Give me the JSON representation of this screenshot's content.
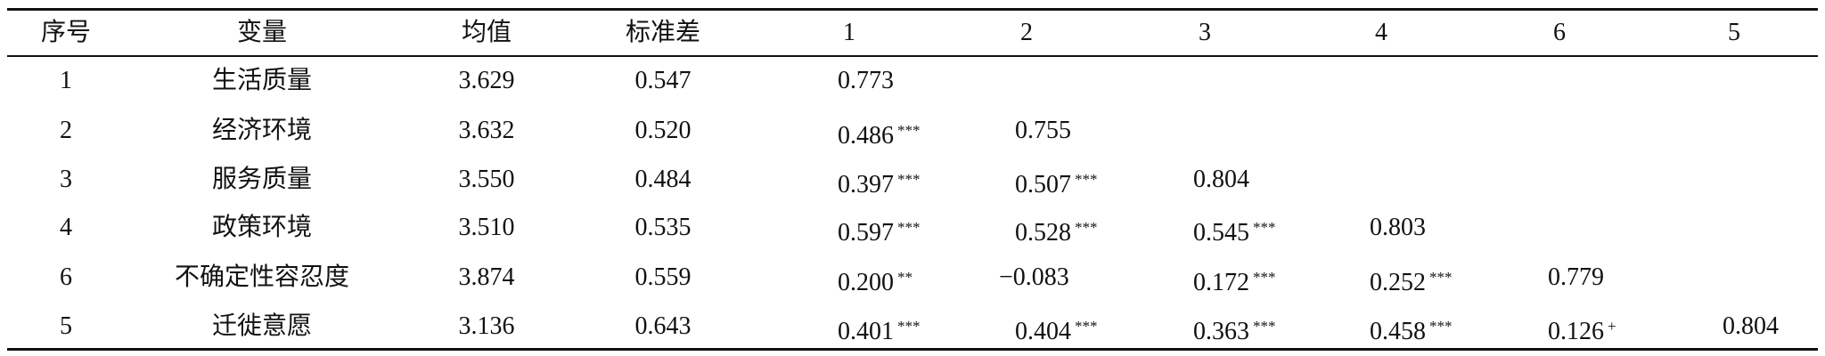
{
  "table": {
    "header": [
      "序号",
      "变量",
      "均值",
      "标准差",
      "1",
      "2",
      "3",
      "4",
      "6",
      "5"
    ],
    "rows": [
      [
        "1",
        "生活质量",
        "3.629",
        "0.547",
        {
          "text": "0.773"
        }
      ],
      [
        "2",
        "经济环境",
        "3.632",
        "0.520",
        {
          "text": "0.486",
          "sig": "***"
        },
        {
          "text": "0.755"
        }
      ],
      [
        "3",
        "服务质量",
        "3.550",
        "0.484",
        {
          "text": "0.397",
          "sig": "***"
        },
        {
          "text": "0.507",
          "sig": "***"
        },
        {
          "text": "0.804"
        }
      ],
      [
        "4",
        "政策环境",
        "3.510",
        "0.535",
        {
          "text": "0.597",
          "sig": "***"
        },
        {
          "text": "0.528",
          "sig": "***"
        },
        {
          "text": "0.545",
          "sig": "***"
        },
        {
          "text": "0.803"
        }
      ],
      [
        "6",
        "不确定性容忍度",
        "3.874",
        "0.559",
        {
          "text": "0.200",
          "sig": "**"
        },
        {
          "text": "−0.083"
        },
        {
          "text": "0.172",
          "sig": "***"
        },
        {
          "text": "0.252",
          "sig": "***"
        },
        {
          "text": "0.779"
        }
      ],
      [
        "5",
        "迁徙意愿",
        "3.136",
        "0.643",
        {
          "text": "0.401",
          "sig": "***"
        },
        {
          "text": "0.404",
          "sig": "***"
        },
        {
          "text": "0.363",
          "sig": "***"
        },
        {
          "text": "0.458",
          "sig": "***"
        },
        {
          "text": "0.126",
          "sig": "+"
        },
        {
          "text": "0.804"
        }
      ]
    ]
  }
}
